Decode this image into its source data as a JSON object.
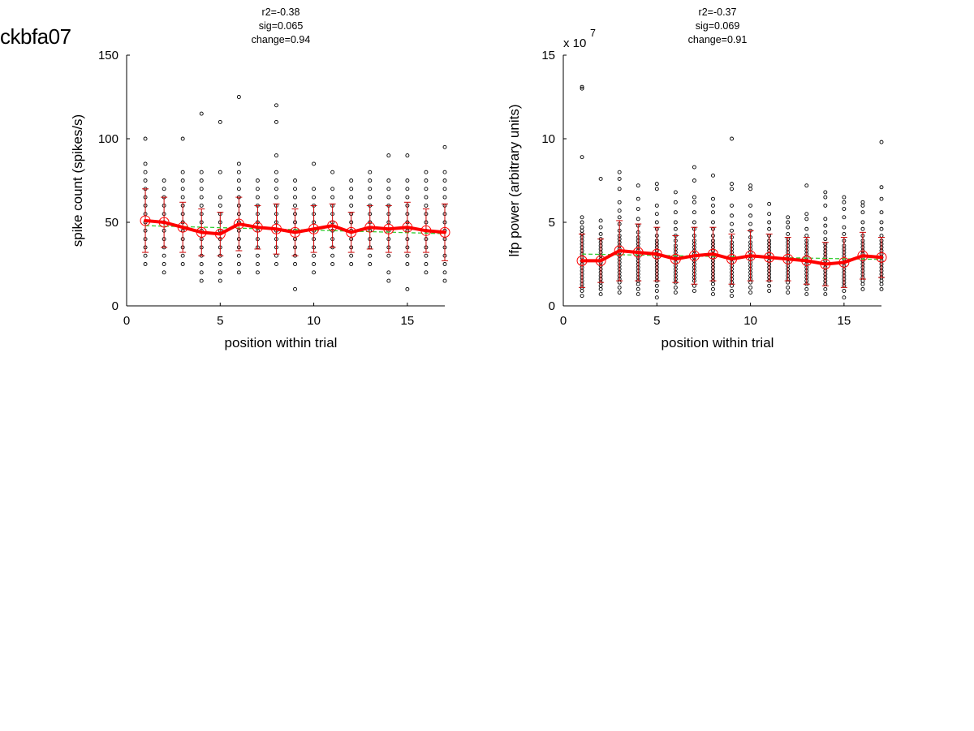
{
  "figure_label": "ckbfa07",
  "colors": {
    "axis": "#000000",
    "mean": "#ff0000",
    "error": "#cc0000",
    "fit": "#33cc33",
    "points": "#000000"
  },
  "chart_data": [
    {
      "type": "scatter",
      "stats": [
        "r2=-0.38",
        "sig=0.065",
        "change=0.94"
      ],
      "xlabel": "position within trial",
      "ylabel": "spike count (spikes/s)",
      "exponent": "",
      "xlim": [
        0,
        17
      ],
      "ylim": [
        0,
        150
      ],
      "xticks": [
        0,
        5,
        10,
        15
      ],
      "yticks": [
        0,
        50,
        100,
        150
      ],
      "x": [
        1,
        2,
        3,
        4,
        5,
        6,
        7,
        8,
        9,
        10,
        11,
        12,
        13,
        14,
        15,
        16,
        17
      ],
      "mean": [
        51,
        50,
        47,
        44,
        43,
        49,
        47,
        46,
        44,
        46,
        48,
        44,
        47,
        46,
        47,
        45,
        44
      ],
      "sd": [
        19,
        15,
        15,
        14,
        13,
        16,
        13,
        15,
        14,
        14,
        13,
        12,
        13,
        14,
        15,
        13,
        17
      ],
      "fit": [
        48,
        47.7,
        47.4,
        47.1,
        46.8,
        46.5,
        46.2,
        45.9,
        45.6,
        45.3,
        45,
        44.7,
        44.4,
        44.1,
        43.8,
        43.5,
        43.2
      ],
      "points": [
        [
          25,
          30,
          35,
          40,
          45,
          50,
          55,
          60,
          65,
          70,
          75,
          80,
          85,
          100
        ],
        [
          20,
          25,
          30,
          35,
          40,
          45,
          50,
          55,
          60,
          65,
          70,
          75
        ],
        [
          25,
          30,
          35,
          40,
          45,
          50,
          55,
          60,
          65,
          70,
          75,
          80,
          100
        ],
        [
          15,
          20,
          25,
          30,
          35,
          40,
          45,
          50,
          55,
          60,
          65,
          70,
          75,
          80,
          115
        ],
        [
          15,
          20,
          25,
          30,
          35,
          40,
          45,
          50,
          55,
          60,
          65,
          80,
          110
        ],
        [
          20,
          25,
          30,
          35,
          40,
          45,
          50,
          55,
          60,
          65,
          70,
          75,
          80,
          85,
          125
        ],
        [
          20,
          25,
          30,
          35,
          40,
          45,
          50,
          55,
          60,
          65,
          70,
          75
        ],
        [
          25,
          30,
          35,
          40,
          45,
          50,
          55,
          60,
          65,
          70,
          75,
          80,
          90,
          110,
          120
        ],
        [
          10,
          25,
          30,
          35,
          40,
          45,
          50,
          55,
          60,
          65,
          70,
          75
        ],
        [
          20,
          25,
          30,
          35,
          40,
          45,
          50,
          55,
          60,
          65,
          70,
          85
        ],
        [
          25,
          30,
          35,
          40,
          45,
          50,
          55,
          60,
          65,
          70,
          80
        ],
        [
          25,
          30,
          35,
          40,
          45,
          50,
          55,
          60,
          65,
          70,
          75
        ],
        [
          25,
          30,
          35,
          40,
          45,
          50,
          55,
          60,
          65,
          70,
          75,
          80
        ],
        [
          15,
          20,
          30,
          35,
          40,
          45,
          50,
          55,
          60,
          65,
          70,
          75,
          90
        ],
        [
          10,
          25,
          30,
          35,
          40,
          45,
          50,
          55,
          60,
          65,
          70,
          75,
          90
        ],
        [
          20,
          25,
          30,
          35,
          40,
          45,
          50,
          55,
          60,
          65,
          70,
          75,
          80
        ],
        [
          15,
          20,
          25,
          30,
          35,
          40,
          45,
          50,
          55,
          60,
          65,
          70,
          75,
          80,
          95
        ]
      ]
    },
    {
      "type": "scatter",
      "stats": [
        "r2=-0.37",
        "sig=0.069",
        "change=0.91"
      ],
      "xlabel": "position within trial",
      "ylabel": "lfp power (arbitrary units)",
      "exponent": "x 10",
      "exponent_power": "7",
      "xlim": [
        0,
        17
      ],
      "ylim": [
        0,
        15
      ],
      "xticks": [
        0,
        5,
        10,
        15
      ],
      "yticks": [
        0,
        5,
        10,
        15
      ],
      "x": [
        1,
        2,
        3,
        4,
        5,
        6,
        7,
        8,
        9,
        10,
        11,
        12,
        13,
        14,
        15,
        16,
        17
      ],
      "mean": [
        2.7,
        2.7,
        3.3,
        3.2,
        3.1,
        2.8,
        3.0,
        3.1,
        2.8,
        3.0,
        2.9,
        2.8,
        2.7,
        2.5,
        2.6,
        3.0,
        2.9
      ],
      "sd": [
        1.6,
        1.3,
        1.8,
        1.7,
        1.6,
        1.4,
        1.7,
        1.6,
        1.5,
        1.5,
        1.4,
        1.3,
        1.4,
        1.3,
        1.5,
        1.4,
        1.2
      ],
      "fit": [
        3.1,
        3.08,
        3.06,
        3.04,
        3.02,
        3.0,
        2.98,
        2.96,
        2.94,
        2.92,
        2.9,
        2.88,
        2.86,
        2.84,
        2.82,
        2.8,
        2.78
      ],
      "points": [
        [
          0.6,
          0.9,
          1.1,
          1.3,
          1.5,
          1.7,
          1.9,
          2.1,
          2.3,
          2.5,
          2.7,
          2.9,
          3.1,
          3.3,
          3.5,
          3.7,
          3.9,
          4.1,
          4.3,
          4.5,
          4.7,
          5.0,
          5.3,
          8.9,
          13.0,
          13.1
        ],
        [
          0.7,
          1.0,
          1.2,
          1.4,
          1.6,
          1.8,
          2.0,
          2.2,
          2.4,
          2.6,
          2.8,
          3.0,
          3.2,
          3.4,
          3.6,
          3.8,
          4.0,
          4.3,
          4.7,
          5.1,
          7.6
        ],
        [
          0.8,
          1.1,
          1.4,
          1.6,
          1.8,
          2.0,
          2.2,
          2.4,
          2.6,
          2.8,
          3.0,
          3.2,
          3.4,
          3.6,
          3.8,
          4.0,
          4.2,
          4.5,
          4.9,
          5.3,
          5.7,
          6.2,
          7.0,
          7.6,
          8.0
        ],
        [
          0.7,
          1.0,
          1.3,
          1.5,
          1.7,
          1.9,
          2.1,
          2.3,
          2.5,
          2.7,
          2.9,
          3.1,
          3.3,
          3.5,
          3.7,
          3.9,
          4.1,
          4.4,
          4.8,
          5.2,
          5.8,
          6.4,
          7.2
        ],
        [
          0.5,
          0.9,
          1.2,
          1.5,
          1.7,
          1.9,
          2.1,
          2.3,
          2.5,
          2.7,
          2.9,
          3.1,
          3.3,
          3.5,
          3.7,
          3.9,
          4.2,
          4.6,
          5.0,
          5.5,
          6.0,
          7.0,
          7.3
        ],
        [
          0.8,
          1.1,
          1.4,
          1.6,
          1.8,
          2.0,
          2.2,
          2.4,
          2.6,
          2.8,
          3.0,
          3.2,
          3.4,
          3.6,
          3.9,
          4.2,
          4.6,
          5.0,
          5.6,
          6.2,
          6.8
        ],
        [
          0.9,
          1.2,
          1.5,
          1.7,
          1.9,
          2.1,
          2.3,
          2.5,
          2.7,
          2.9,
          3.1,
          3.3,
          3.5,
          3.7,
          3.9,
          4.2,
          4.6,
          5.0,
          5.6,
          6.2,
          6.5,
          7.5,
          8.3
        ],
        [
          0.7,
          1.0,
          1.3,
          1.5,
          1.7,
          1.9,
          2.1,
          2.3,
          2.5,
          2.7,
          2.9,
          3.1,
          3.3,
          3.5,
          3.7,
          3.9,
          4.2,
          4.6,
          5.0,
          5.6,
          6.0,
          6.4,
          7.8
        ],
        [
          0.6,
          0.9,
          1.2,
          1.4,
          1.6,
          1.8,
          2.0,
          2.2,
          2.4,
          2.6,
          2.8,
          3.0,
          3.2,
          3.4,
          3.6,
          3.8,
          4.1,
          4.5,
          4.9,
          5.4,
          6.0,
          7.0,
          7.3,
          10.0
        ],
        [
          0.8,
          1.1,
          1.4,
          1.6,
          1.8,
          2.0,
          2.2,
          2.4,
          2.6,
          2.8,
          3.0,
          3.2,
          3.4,
          3.6,
          3.8,
          4.1,
          4.5,
          4.9,
          5.4,
          6.0,
          7.0,
          7.2
        ],
        [
          0.9,
          1.2,
          1.5,
          1.7,
          1.9,
          2.1,
          2.3,
          2.5,
          2.7,
          2.9,
          3.1,
          3.3,
          3.5,
          3.7,
          3.9,
          4.2,
          4.6,
          5.0,
          5.5,
          6.1
        ],
        [
          0.8,
          1.1,
          1.4,
          1.6,
          1.8,
          2.0,
          2.2,
          2.4,
          2.6,
          2.8,
          3.0,
          3.2,
          3.4,
          3.6,
          3.8,
          4.0,
          4.3,
          4.7,
          5.0,
          5.3
        ],
        [
          0.7,
          1.0,
          1.3,
          1.5,
          1.7,
          1.9,
          2.1,
          2.3,
          2.5,
          2.7,
          2.9,
          3.1,
          3.3,
          3.5,
          3.7,
          3.9,
          4.2,
          4.6,
          5.2,
          5.5,
          7.2
        ],
        [
          0.7,
          1.0,
          1.3,
          1.5,
          1.7,
          1.9,
          2.1,
          2.3,
          2.5,
          2.7,
          2.9,
          3.1,
          3.3,
          3.5,
          3.7,
          4.0,
          4.4,
          4.8,
          5.2,
          6.0,
          6.5,
          6.8
        ],
        [
          0.5,
          0.9,
          1.2,
          1.4,
          1.6,
          1.8,
          2.0,
          2.2,
          2.4,
          2.6,
          2.8,
          3.0,
          3.2,
          3.4,
          3.6,
          3.9,
          4.3,
          4.7,
          5.3,
          5.8,
          6.2,
          6.5
        ],
        [
          1.0,
          1.3,
          1.5,
          1.7,
          1.9,
          2.1,
          2.3,
          2.5,
          2.7,
          2.9,
          3.1,
          3.3,
          3.5,
          3.7,
          3.9,
          4.2,
          4.6,
          5.0,
          5.6,
          6.0,
          6.2
        ],
        [
          1.0,
          1.3,
          1.5,
          1.7,
          1.9,
          2.1,
          2.3,
          2.5,
          2.7,
          2.9,
          3.1,
          3.3,
          3.5,
          3.7,
          3.9,
          4.2,
          4.6,
          5.0,
          5.6,
          6.4,
          7.1,
          9.8
        ]
      ]
    }
  ]
}
